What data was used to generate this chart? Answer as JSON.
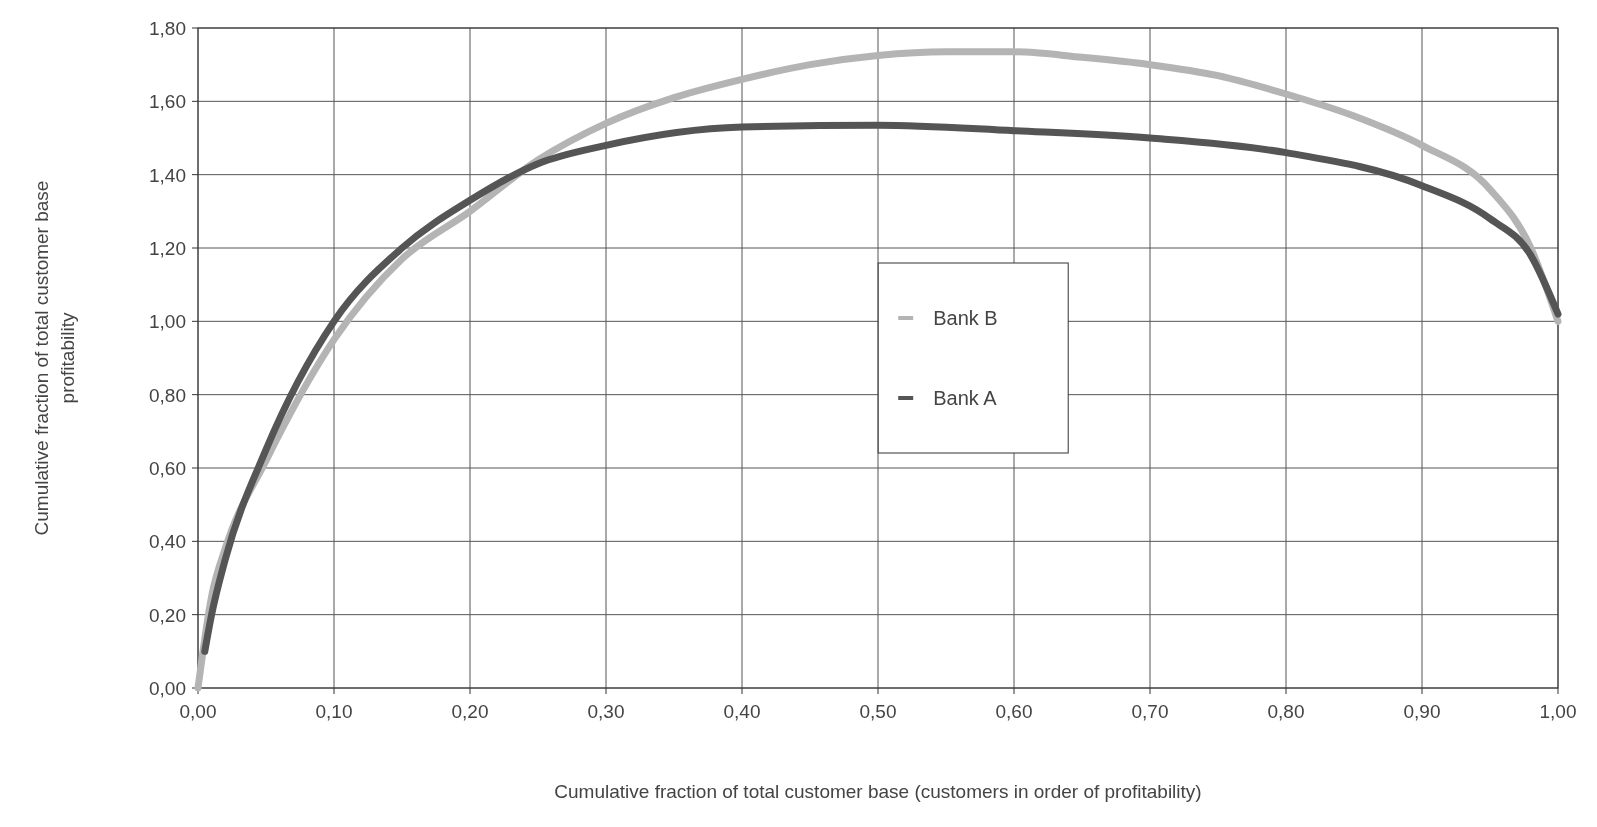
{
  "chart_data": {
    "type": "line",
    "xlabel": "Cumulative fraction of total customer base (customers in order of profitability)",
    "ylabel": "Cumulative fraction of total customer base profitability",
    "xlim": [
      0,
      1
    ],
    "ylim": [
      0,
      1.8
    ],
    "xticks": [
      {
        "value": 0,
        "label": "0,00"
      },
      {
        "value": 0.1,
        "label": "0,10"
      },
      {
        "value": 0.2,
        "label": "0,20"
      },
      {
        "value": 0.3,
        "label": "0,30"
      },
      {
        "value": 0.4,
        "label": "0,40"
      },
      {
        "value": 0.5,
        "label": "0,50"
      },
      {
        "value": 0.6,
        "label": "0,60"
      },
      {
        "value": 0.7,
        "label": "0,70"
      },
      {
        "value": 0.8,
        "label": "0,80"
      },
      {
        "value": 0.9,
        "label": "0,90"
      },
      {
        "value": 1,
        "label": "1,00"
      }
    ],
    "yticks": [
      {
        "value": 0,
        "label": "0,00"
      },
      {
        "value": 0.2,
        "label": "0,20"
      },
      {
        "value": 0.4,
        "label": "0,40"
      },
      {
        "value": 0.6,
        "label": "0,60"
      },
      {
        "value": 0.8,
        "label": "0,80"
      },
      {
        "value": 1,
        "label": "1,00"
      },
      {
        "value": 1.2,
        "label": "1,20"
      },
      {
        "value": 1.4,
        "label": "1,40"
      },
      {
        "value": 1.6,
        "label": "1,60"
      },
      {
        "value": 1.8,
        "label": "1,80"
      }
    ],
    "grid": true,
    "legend": "center",
    "series": [
      {
        "name": "Bank B",
        "color": "#b4b4b4",
        "x": [
          0,
          0.01,
          0.02,
          0.05,
          0.1,
          0.15,
          0.2,
          0.25,
          0.3,
          0.35,
          0.4,
          0.45,
          0.5,
          0.55,
          0.6,
          0.65,
          0.7,
          0.75,
          0.8,
          0.85,
          0.9,
          0.95,
          0.98,
          1
        ],
        "values": [
          0,
          0.25,
          0.38,
          0.62,
          0.95,
          1.17,
          1.3,
          1.44,
          1.54,
          1.61,
          1.66,
          1.7,
          1.725,
          1.735,
          1.735,
          1.72,
          1.7,
          1.67,
          1.62,
          1.56,
          1.48,
          1.36,
          1.2,
          1
        ]
      },
      {
        "name": "Bank A",
        "color": "#555555",
        "x": [
          0.005,
          0.01,
          0.02,
          0.05,
          0.1,
          0.15,
          0.2,
          0.25,
          0.3,
          0.4,
          0.5,
          0.6,
          0.7,
          0.8,
          0.9,
          0.95,
          0.98,
          1
        ],
        "values": [
          0.1,
          0.2,
          0.35,
          0.65,
          1,
          1.2,
          1.33,
          1.43,
          1.48,
          1.53,
          1.535,
          1.52,
          1.5,
          1.46,
          1.37,
          1.28,
          1.18,
          1.02
        ]
      }
    ]
  }
}
